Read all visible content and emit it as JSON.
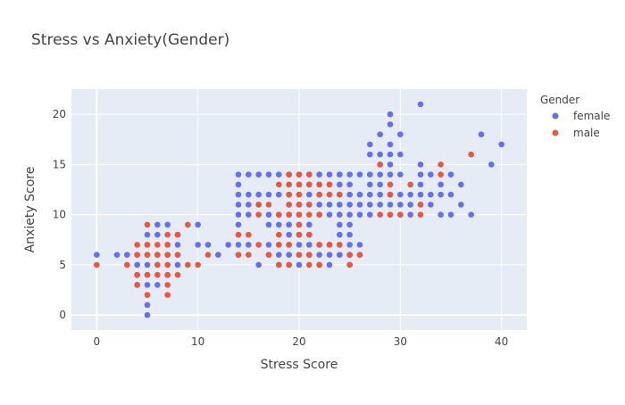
{
  "chart_data": {
    "type": "scatter",
    "title": "Stress vs Anxiety(Gender)",
    "xlabel": "Stress Score",
    "ylabel": "Anxiety Score",
    "xlim": [
      -2.5,
      42.5
    ],
    "ylim": [
      -1.5,
      22.5
    ],
    "x_ticks": [
      0,
      10,
      20,
      30,
      40
    ],
    "y_ticks": [
      0,
      5,
      10,
      15,
      20
    ],
    "grid": true,
    "legend_title": "Gender",
    "legend_position": "top-right",
    "series": [
      {
        "name": "female",
        "color": "#636efa",
        "points": [
          [
            0,
            6
          ],
          [
            2,
            6
          ],
          [
            3,
            6
          ],
          [
            4,
            6
          ],
          [
            4,
            5
          ],
          [
            4,
            4
          ],
          [
            4,
            3
          ],
          [
            5,
            8
          ],
          [
            5,
            7
          ],
          [
            5,
            6
          ],
          [
            5,
            5
          ],
          [
            5,
            4
          ],
          [
            5,
            3
          ],
          [
            5,
            1
          ],
          [
            5,
            0
          ],
          [
            6,
            9
          ],
          [
            6,
            8
          ],
          [
            6,
            6
          ],
          [
            6,
            5
          ],
          [
            6,
            3
          ],
          [
            7,
            9
          ],
          [
            7,
            7
          ],
          [
            7,
            6
          ],
          [
            7,
            4
          ],
          [
            8,
            8
          ],
          [
            8,
            7
          ],
          [
            8,
            6
          ],
          [
            8,
            5
          ],
          [
            10,
            9
          ],
          [
            10,
            7
          ],
          [
            11,
            7
          ],
          [
            12,
            6
          ],
          [
            13,
            7
          ],
          [
            14,
            14
          ],
          [
            14,
            13
          ],
          [
            14,
            12
          ],
          [
            14,
            11
          ],
          [
            14,
            10
          ],
          [
            14,
            9
          ],
          [
            14,
            7
          ],
          [
            14,
            6
          ],
          [
            15,
            14
          ],
          [
            15,
            12
          ],
          [
            15,
            11
          ],
          [
            15,
            10
          ],
          [
            15,
            7
          ],
          [
            16,
            14
          ],
          [
            16,
            12
          ],
          [
            16,
            11
          ],
          [
            16,
            5
          ],
          [
            17,
            14
          ],
          [
            17,
            12
          ],
          [
            17,
            10
          ],
          [
            17,
            9
          ],
          [
            17,
            7
          ],
          [
            17,
            6
          ],
          [
            18,
            14
          ],
          [
            18,
            12
          ],
          [
            18,
            10
          ],
          [
            18,
            9
          ],
          [
            18,
            7
          ],
          [
            18,
            6
          ],
          [
            18,
            5
          ],
          [
            19,
            14
          ],
          [
            19,
            13
          ],
          [
            19,
            12
          ],
          [
            19,
            11
          ],
          [
            19,
            10
          ],
          [
            19,
            9
          ],
          [
            19,
            8
          ],
          [
            19,
            7
          ],
          [
            19,
            6
          ],
          [
            19,
            5
          ],
          [
            20,
            14
          ],
          [
            20,
            13
          ],
          [
            20,
            12
          ],
          [
            20,
            11
          ],
          [
            20,
            10
          ],
          [
            20,
            9
          ],
          [
            20,
            8
          ],
          [
            20,
            7
          ],
          [
            20,
            6
          ],
          [
            20,
            5
          ],
          [
            21,
            14
          ],
          [
            21,
            13
          ],
          [
            21,
            12
          ],
          [
            21,
            11
          ],
          [
            21,
            9
          ],
          [
            21,
            8
          ],
          [
            21,
            7
          ],
          [
            21,
            6
          ],
          [
            22,
            14
          ],
          [
            22,
            13
          ],
          [
            22,
            12
          ],
          [
            22,
            11
          ],
          [
            22,
            10
          ],
          [
            22,
            7
          ],
          [
            22,
            6
          ],
          [
            22,
            5
          ],
          [
            23,
            14
          ],
          [
            23,
            13
          ],
          [
            23,
            11
          ],
          [
            23,
            10
          ],
          [
            23,
            7
          ],
          [
            23,
            6
          ],
          [
            23,
            5
          ],
          [
            24,
            14
          ],
          [
            24,
            13
          ],
          [
            24,
            12
          ],
          [
            24,
            11
          ],
          [
            24,
            10
          ],
          [
            24,
            9
          ],
          [
            24,
            8
          ],
          [
            24,
            7
          ],
          [
            24,
            6
          ],
          [
            25,
            14
          ],
          [
            25,
            13
          ],
          [
            25,
            12
          ],
          [
            25,
            11
          ],
          [
            25,
            10
          ],
          [
            25,
            9
          ],
          [
            25,
            8
          ],
          [
            25,
            7
          ],
          [
            25,
            6
          ],
          [
            25,
            5
          ],
          [
            26,
            14
          ],
          [
            26,
            12
          ],
          [
            26,
            11
          ],
          [
            26,
            10
          ],
          [
            26,
            7
          ],
          [
            26,
            6
          ],
          [
            27,
            17
          ],
          [
            27,
            16
          ],
          [
            27,
            14
          ],
          [
            27,
            13
          ],
          [
            27,
            12
          ],
          [
            27,
            11
          ],
          [
            27,
            10
          ],
          [
            28,
            18
          ],
          [
            28,
            16
          ],
          [
            28,
            15
          ],
          [
            28,
            14
          ],
          [
            28,
            13
          ],
          [
            28,
            12
          ],
          [
            28,
            11
          ],
          [
            29,
            20
          ],
          [
            29,
            19
          ],
          [
            29,
            17
          ],
          [
            29,
            16
          ],
          [
            29,
            15
          ],
          [
            29,
            14
          ],
          [
            29,
            12
          ],
          [
            29,
            11
          ],
          [
            29,
            10
          ],
          [
            30,
            18
          ],
          [
            30,
            16
          ],
          [
            30,
            14
          ],
          [
            30,
            12
          ],
          [
            30,
            11
          ],
          [
            30,
            10
          ],
          [
            31,
            12
          ],
          [
            31,
            11
          ],
          [
            31,
            10
          ],
          [
            32,
            21
          ],
          [
            32,
            15
          ],
          [
            32,
            14
          ],
          [
            32,
            13
          ],
          [
            32,
            12
          ],
          [
            32,
            11
          ],
          [
            33,
            14
          ],
          [
            33,
            12
          ],
          [
            33,
            11
          ],
          [
            34,
            13
          ],
          [
            34,
            12
          ],
          [
            34,
            10
          ],
          [
            35,
            14
          ],
          [
            35,
            12
          ],
          [
            35,
            10
          ],
          [
            36,
            13
          ],
          [
            36,
            11
          ],
          [
            37,
            10
          ],
          [
            38,
            18
          ],
          [
            39,
            15
          ],
          [
            40,
            17
          ]
        ]
      },
      {
        "name": "male",
        "color": "#ef553b",
        "points": [
          [
            0,
            5
          ],
          [
            3,
            5
          ],
          [
            4,
            7
          ],
          [
            4,
            6
          ],
          [
            4,
            4
          ],
          [
            4,
            3
          ],
          [
            5,
            9
          ],
          [
            5,
            7
          ],
          [
            5,
            6
          ],
          [
            5,
            4
          ],
          [
            5,
            2
          ],
          [
            6,
            7
          ],
          [
            6,
            6
          ],
          [
            6,
            5
          ],
          [
            6,
            4
          ],
          [
            7,
            8
          ],
          [
            7,
            7
          ],
          [
            7,
            6
          ],
          [
            7,
            5
          ],
          [
            7,
            4
          ],
          [
            7,
            3
          ],
          [
            7,
            2
          ],
          [
            8,
            8
          ],
          [
            8,
            6
          ],
          [
            8,
            4
          ],
          [
            9,
            9
          ],
          [
            9,
            5
          ],
          [
            10,
            5
          ],
          [
            11,
            6
          ],
          [
            14,
            8
          ],
          [
            14,
            6
          ],
          [
            15,
            8
          ],
          [
            15,
            6
          ],
          [
            16,
            11
          ],
          [
            16,
            10
          ],
          [
            16,
            7
          ],
          [
            17,
            11
          ],
          [
            17,
            6
          ],
          [
            18,
            13
          ],
          [
            18,
            10
          ],
          [
            18,
            8
          ],
          [
            18,
            7
          ],
          [
            18,
            5
          ],
          [
            19,
            14
          ],
          [
            19,
            13
          ],
          [
            19,
            12
          ],
          [
            19,
            11
          ],
          [
            19,
            10
          ],
          [
            19,
            7
          ],
          [
            19,
            5
          ],
          [
            20,
            14
          ],
          [
            20,
            13
          ],
          [
            20,
            12
          ],
          [
            20,
            11
          ],
          [
            20,
            10
          ],
          [
            20,
            9
          ],
          [
            20,
            8
          ],
          [
            20,
            6
          ],
          [
            21,
            14
          ],
          [
            21,
            13
          ],
          [
            21,
            11
          ],
          [
            21,
            10
          ],
          [
            21,
            8
          ],
          [
            21,
            6
          ],
          [
            21,
            5
          ],
          [
            22,
            13
          ],
          [
            22,
            12
          ],
          [
            22,
            10
          ],
          [
            22,
            7
          ],
          [
            22,
            5
          ],
          [
            23,
            13
          ],
          [
            23,
            12
          ],
          [
            23,
            7
          ],
          [
            24,
            12
          ],
          [
            24,
            7
          ],
          [
            25,
            6
          ],
          [
            25,
            5
          ],
          [
            26,
            6
          ],
          [
            28,
            15
          ],
          [
            28,
            10
          ],
          [
            29,
            13
          ],
          [
            29,
            12
          ],
          [
            29,
            10
          ],
          [
            30,
            10
          ],
          [
            31,
            13
          ],
          [
            32,
            11
          ],
          [
            32,
            10
          ],
          [
            34,
            15
          ],
          [
            34,
            14
          ],
          [
            37,
            16
          ]
        ]
      }
    ]
  }
}
